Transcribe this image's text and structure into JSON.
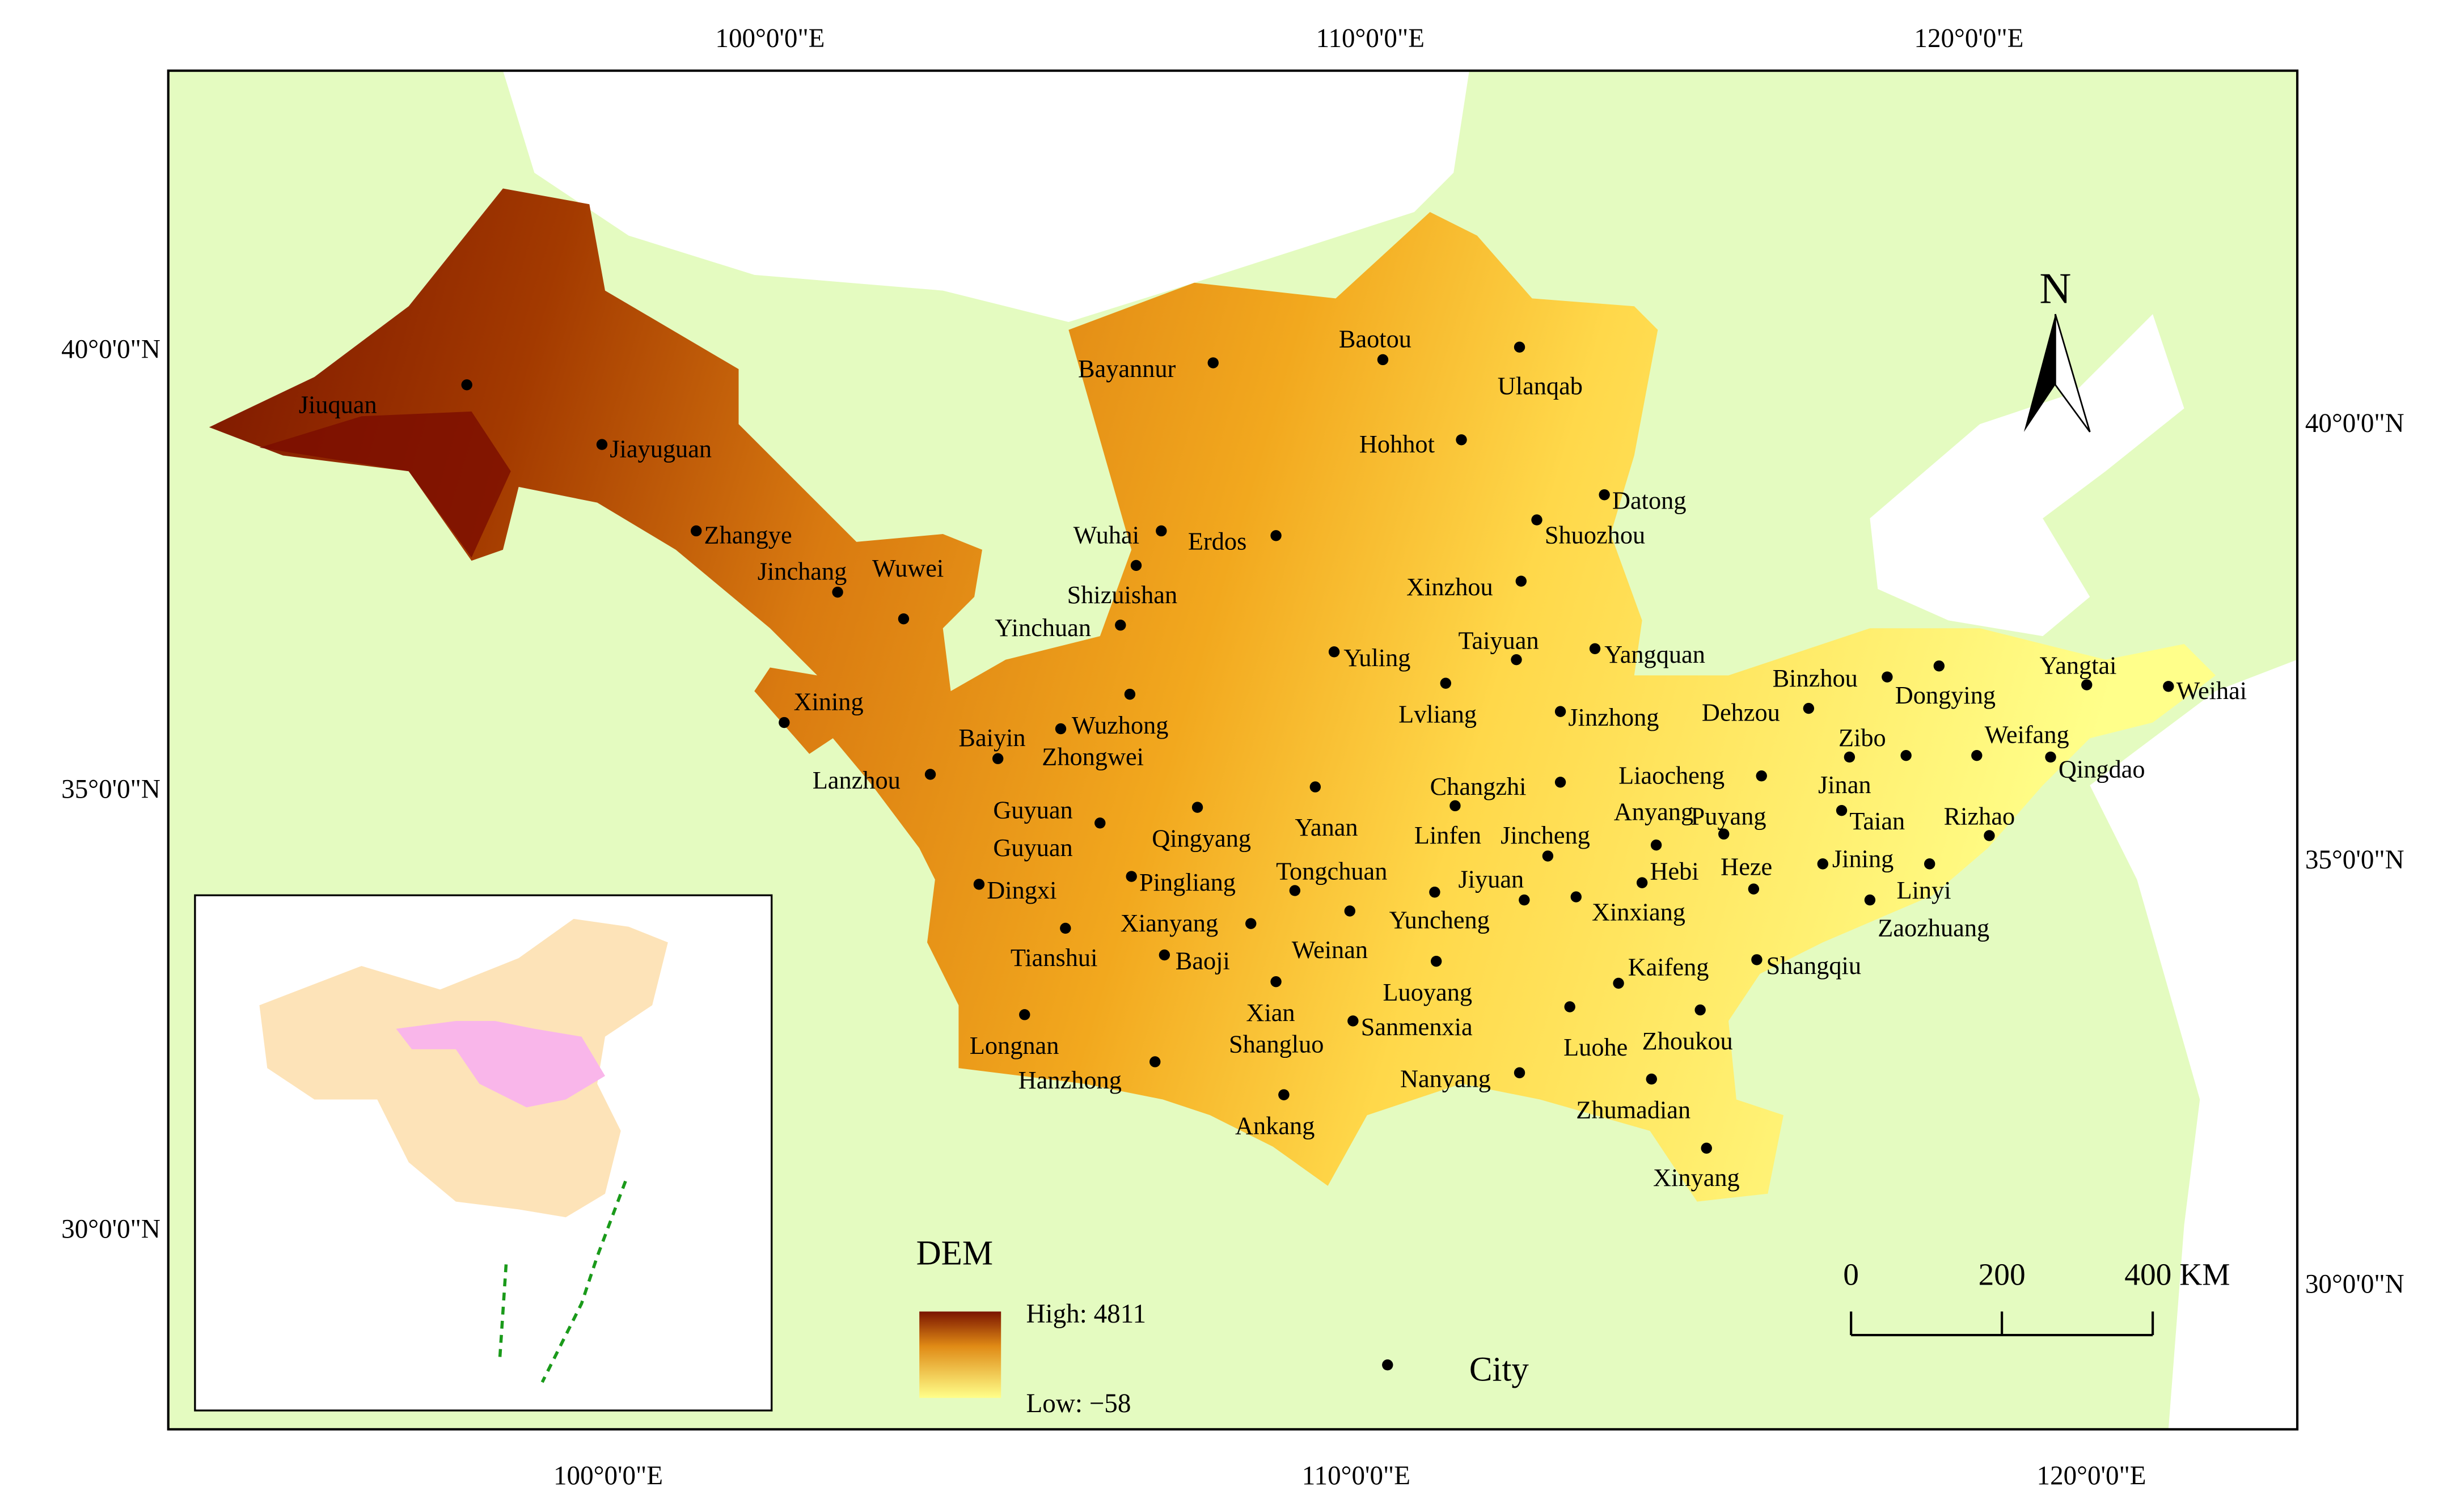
{
  "graticule": {
    "top": [
      "100°0'0\"E",
      "110°0'0\"E",
      "120°0'0\"E"
    ],
    "bottom": [
      "100°0'0\"E",
      "110°0'0\"E",
      "120°0'0\"E"
    ],
    "left": [
      "40°0'0\"N",
      "35°0'0\"N",
      "30°0'0\"N"
    ],
    "right": [
      "40°0'0\"N",
      "35°0'0\"N",
      "30°0'0\"N"
    ]
  },
  "cities": [
    "Jiuquan",
    "Jiayuguan",
    "Zhangye",
    "Jinchang",
    "Wuwei",
    "Xining",
    "Lanzhou",
    "Baiyin",
    "Wuzhong",
    "Zhongwei",
    "Yinchuan",
    "Shizuishan",
    "Wuhai",
    "Erdos",
    "Bayannur",
    "Baotou",
    "Ulanqab",
    "Hohhot",
    "Datong",
    "Shuozhou",
    "Xinzhou",
    "Taiyuan",
    "Yangquan",
    "Yuling",
    "Lvliang",
    "Jinzhong",
    "Changzhi",
    "Linfen",
    "Jincheng",
    "Yanan",
    "Qingyang",
    "Guyuan",
    "Guyuan",
    "Dingxi",
    "Pingliang",
    "Tongchuan",
    "Jiyuan",
    "Xianyang",
    "Weinan",
    "Yuncheng",
    "Tianshui",
    "Baoji",
    "Xian",
    "Luoyang",
    "Sanmenxia",
    "Shangluo",
    "Longnan",
    "Hanzhong",
    "Ankang",
    "Nanyang",
    "Zhumadian",
    "Xinyang",
    "Luohe",
    "Zhoukou",
    "Kaifeng",
    "Xinxiang",
    "Hebi",
    "Anyang",
    "Puyang",
    "Heze",
    "Shangqiu",
    "Liaocheng",
    "Jinan",
    "Dehzou",
    "Binzhou",
    "Dongying",
    "Zibo",
    "Taian",
    "Jining",
    "Linyi",
    "Zaozhuang",
    "Rizhao",
    "Weifang",
    "Qingdao",
    "Yangtai",
    "Weihai"
  ],
  "legend": {
    "title": "DEM",
    "high": "High: 4811",
    "low": "Low: −58",
    "city": "City"
  },
  "scale_bar": {
    "labels": [
      "0",
      "200",
      "400 KM"
    ]
  },
  "north_arrow": "N"
}
